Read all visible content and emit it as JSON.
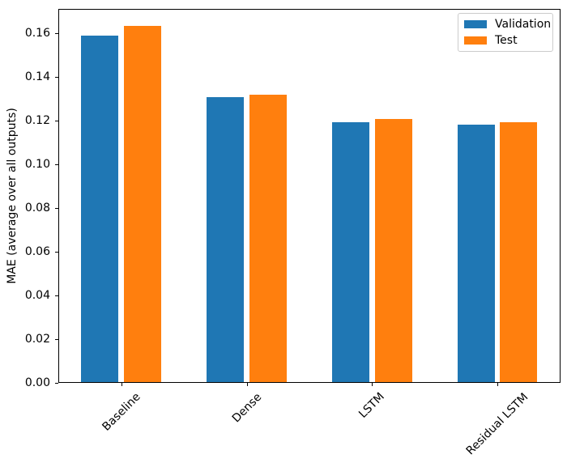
{
  "chart_data": {
    "type": "bar",
    "ylabel": "MAE (average over all outputs)",
    "categories": [
      "Baseline",
      "Dense",
      "LSTM",
      "Residual LSTM"
    ],
    "series": [
      {
        "name": "Validation",
        "color": "#1f77b4",
        "values": [
          0.1585,
          0.1305,
          0.119,
          0.1178
        ]
      },
      {
        "name": "Test",
        "color": "#ff7f0e",
        "values": [
          0.1632,
          0.1317,
          0.1206,
          0.1191
        ]
      }
    ],
    "bar_width": 0.3,
    "bar_offsets": [
      -0.17,
      0.17
    ],
    "xlim": [
      -0.502,
      3.502
    ],
    "ylim": [
      0,
      0.1712
    ],
    "yticks": [
      0.0,
      0.02,
      0.04,
      0.06,
      0.08,
      0.1,
      0.12,
      0.14,
      0.16
    ],
    "ytick_labels": [
      "0.00",
      "0.02",
      "0.04",
      "0.06",
      "0.08",
      "0.10",
      "0.12",
      "0.14",
      "0.16"
    ],
    "xtick_rotation_deg": 45,
    "grid": false,
    "legend": {
      "position": "upper right",
      "entries": [
        "Validation",
        "Test"
      ]
    },
    "frame_color": "#000000",
    "background_color": "#ffffff"
  }
}
